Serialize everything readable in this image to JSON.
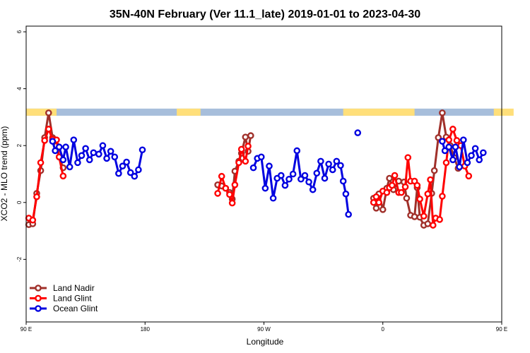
{
  "chart_data": {
    "type": "line",
    "title": "35N-40N February (Ver 11.1_late)   2019-01-01 to 2023-04-30",
    "xlabel": "Longitude",
    "ylabel": "XCO2 - MLO trend (ppm)",
    "xlim": [
      90,
      450
    ],
    "ylim": [
      -4.2,
      6.2
    ],
    "x_ticks": [
      {
        "value": 90,
        "label": "90 E"
      },
      {
        "value": 180,
        "label": "180"
      },
      {
        "value": 270,
        "label": "90 W"
      },
      {
        "value": 360,
        "label": "0"
      },
      {
        "value": 450,
        "label": "90 E"
      },
      {
        "value": 540,
        "label": "180"
      }
    ],
    "y_ticks": [
      {
        "value": -2,
        "label": "-2"
      },
      {
        "value": 0,
        "label": "0"
      },
      {
        "value": 2,
        "label": "2"
      },
      {
        "value": 4,
        "label": "4"
      },
      {
        "value": 6,
        "label": "6"
      }
    ],
    "land_sea_band": {
      "y_range": [
        3.05,
        3.3
      ],
      "land_color": "#ffdf7a",
      "ocean_color": "#a7bedb",
      "land_segments": [
        [
          90,
          113
        ],
        [
          204,
          222
        ],
        [
          330,
          384
        ],
        [
          444,
          459
        ]
      ]
    },
    "legend": {
      "position": "bottom-left"
    },
    "series": [
      {
        "name": "Land Nadir",
        "color": "#a0302a",
        "segments": [
          [
            [
              92,
              -0.78
            ],
            [
              95,
              -0.75
            ],
            [
              98,
              0.32
            ],
            [
              101,
              1.12
            ],
            [
              104,
              2.28
            ],
            [
              107,
              3.15
            ],
            [
              110,
              2.28
            ],
            [
              113,
              2.0
            ],
            [
              115,
              1.6
            ],
            [
              118,
              1.22
            ]
          ],
          [
            [
              235,
              0.62
            ],
            [
              238,
              0.58
            ],
            [
              241,
              0.5
            ],
            [
              244,
              0.35
            ],
            [
              246,
              0.12
            ],
            [
              248,
              1.1
            ],
            [
              251,
              1.45
            ],
            [
              253,
              1.73
            ],
            [
              256,
              2.3
            ],
            [
              258,
              1.8
            ],
            [
              260,
              2.35
            ]
          ],
          [
            [
              353,
              0.15
            ],
            [
              355,
              -0.2
            ],
            [
              357,
              0.3
            ],
            [
              360,
              -0.25
            ],
            [
              363,
              0.5
            ],
            [
              365,
              0.85
            ],
            [
              368,
              0.45
            ],
            [
              372,
              0.75
            ],
            [
              376,
              0.72
            ],
            [
              378,
              0.15
            ],
            [
              381,
              -0.45
            ],
            [
              384,
              -0.5
            ],
            [
              386,
              0.52
            ],
            [
              388,
              -0.52
            ],
            [
              391,
              -0.8
            ],
            [
              394,
              -0.75
            ],
            [
              397,
              0.32
            ],
            [
              399,
              1.12
            ],
            [
              402,
              2.28
            ],
            [
              405,
              3.15
            ],
            [
              408,
              2.3
            ],
            [
              411,
              2.0
            ],
            [
              414,
              1.58
            ],
            [
              417,
              1.2
            ]
          ]
        ]
      },
      {
        "name": "Land Glint",
        "color": "#ff0000",
        "segments": [
          [
            [
              92,
              -0.55
            ],
            [
              95,
              -0.62
            ],
            [
              98,
              0.2
            ],
            [
              101,
              1.4
            ],
            [
              104,
              2.18
            ],
            [
              107,
              2.58
            ],
            [
              110,
              2.22
            ],
            [
              113,
              2.2
            ],
            [
              115,
              1.6
            ],
            [
              118,
              0.93
            ]
          ],
          [
            [
              235,
              0.32
            ],
            [
              238,
              0.92
            ],
            [
              241,
              0.5
            ],
            [
              244,
              0.28
            ],
            [
              246,
              -0.02
            ],
            [
              248,
              0.62
            ],
            [
              251,
              1.4
            ],
            [
              253,
              1.87
            ],
            [
              256,
              1.45
            ],
            [
              258,
              1.98
            ]
          ],
          [
            [
              353,
              0.0
            ],
            [
              355,
              0.2
            ],
            [
              357,
              0.0
            ],
            [
              360,
              0.4
            ],
            [
              363,
              0.35
            ],
            [
              365,
              0.52
            ],
            [
              367,
              0.6
            ],
            [
              369,
              0.95
            ],
            [
              372,
              0.35
            ],
            [
              374,
              0.35
            ],
            [
              377,
              0.55
            ],
            [
              379,
              1.58
            ],
            [
              381,
              0.75
            ],
            [
              384,
              0.75
            ],
            [
              386,
              0.6
            ],
            [
              388,
              0.12
            ],
            [
              391,
              -0.48
            ],
            [
              394,
              0.3
            ],
            [
              396,
              0.8
            ],
            [
              398,
              -0.8
            ],
            [
              400,
              -0.55
            ],
            [
              403,
              -0.6
            ],
            [
              405,
              0.22
            ],
            [
              408,
              1.4
            ],
            [
              410,
              2.2
            ],
            [
              413,
              2.58
            ],
            [
              416,
              2.18
            ],
            [
              419,
              2.0
            ],
            [
              422,
              1.28
            ],
            [
              425,
              0.93
            ]
          ]
        ]
      },
      {
        "name": "Ocean Glint",
        "color": "#0000e0",
        "segments": [
          [
            [
              110,
              2.15
            ],
            [
              112,
              1.82
            ],
            [
              115,
              1.95
            ],
            [
              118,
              1.5
            ],
            [
              120,
              1.95
            ],
            [
              123,
              1.25
            ],
            [
              126,
              2.2
            ],
            [
              129,
              1.4
            ],
            [
              132,
              1.65
            ],
            [
              135,
              1.9
            ],
            [
              138,
              1.5
            ],
            [
              141,
              1.75
            ],
            [
              145,
              1.7
            ],
            [
              148,
              2.0
            ],
            [
              151,
              1.55
            ],
            [
              154,
              1.8
            ],
            [
              157,
              1.6
            ],
            [
              160,
              1.02
            ],
            [
              163,
              1.28
            ],
            [
              166,
              1.42
            ],
            [
              169,
              1.05
            ],
            [
              172,
              0.92
            ],
            [
              175,
              1.15
            ],
            [
              178,
              1.85
            ]
          ],
          [
            [
              262,
              1.22
            ],
            [
              265,
              1.55
            ],
            [
              268,
              1.6
            ],
            [
              271,
              0.5
            ],
            [
              274,
              1.28
            ],
            [
              277,
              0.15
            ],
            [
              280,
              0.85
            ],
            [
              283,
              0.95
            ],
            [
              286,
              0.6
            ],
            [
              289,
              0.82
            ],
            [
              292,
              1.0
            ],
            [
              295,
              1.82
            ],
            [
              298,
              0.82
            ],
            [
              301,
              0.95
            ],
            [
              304,
              0.72
            ],
            [
              307,
              0.45
            ],
            [
              310,
              1.03
            ],
            [
              313,
              1.45
            ],
            [
              316,
              0.85
            ],
            [
              319,
              1.35
            ],
            [
              322,
              1.15
            ],
            [
              325,
              1.45
            ],
            [
              328,
              1.3
            ],
            [
              330,
              0.75
            ],
            [
              332,
              0.3
            ],
            [
              334,
              -0.42
            ]
          ],
          [
            [
              405,
              2.15
            ],
            [
              407,
              1.82
            ],
            [
              410,
              1.95
            ],
            [
              413,
              1.5
            ],
            [
              415,
              1.95
            ],
            [
              418,
              1.25
            ],
            [
              421,
              2.2
            ],
            [
              424,
              1.4
            ],
            [
              427,
              1.65
            ],
            [
              430,
              1.9
            ],
            [
              433,
              1.5
            ],
            [
              436,
              1.75
            ]
          ]
        ],
        "points": [
          [
            341,
            2.45
          ]
        ]
      }
    ]
  }
}
